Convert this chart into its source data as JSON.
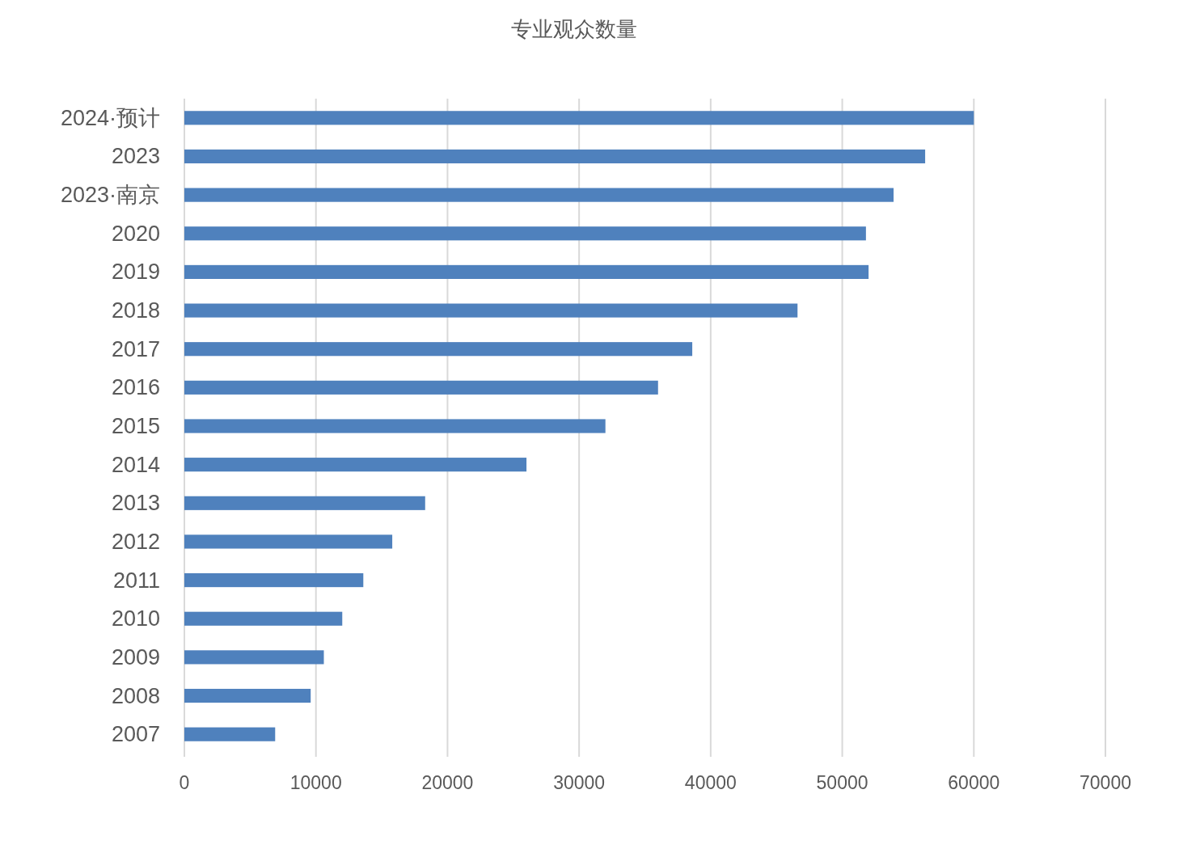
{
  "chart_data": {
    "type": "bar",
    "orientation": "horizontal",
    "title": "专业观众数量",
    "categories": [
      "2024·预计",
      "2023",
      "2023·南京",
      "2020",
      "2019",
      "2018",
      "2017",
      "2016",
      "2015",
      "2014",
      "2013",
      "2012",
      "2011",
      "2010",
      "2009",
      "2008",
      "2007"
    ],
    "values": [
      60000,
      56300,
      53900,
      51800,
      52000,
      46600,
      38600,
      36000,
      32000,
      26000,
      18300,
      15800,
      13600,
      12000,
      10600,
      9600,
      6900
    ],
    "color": "#4f81bd",
    "xlim": [
      0,
      70000
    ],
    "xticks": [
      0,
      10000,
      20000,
      30000,
      40000,
      50000,
      60000,
      70000
    ],
    "grid": "x"
  }
}
